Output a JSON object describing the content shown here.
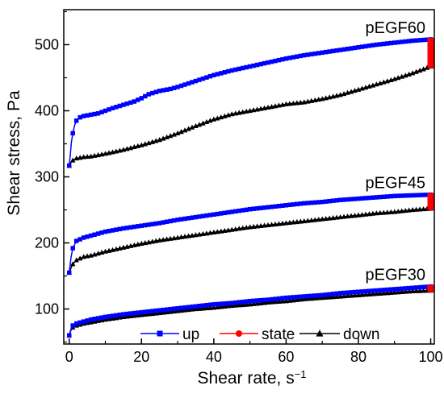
{
  "chart_data": {
    "type": "line",
    "xlabel_base": "Shear rate, s",
    "xlabel_sup": "−1",
    "ylabel": "Shear stress, Pa",
    "xlim": [
      -1.5,
      101
    ],
    "ylim": [
      47,
      553
    ],
    "x_ticks": [
      0,
      20,
      40,
      60,
      80,
      100
    ],
    "y_ticks": [
      100,
      200,
      300,
      400,
      500
    ],
    "x_minor_step": 10,
    "y_minor_step": 50,
    "grid": false,
    "legend_position": "bottom-right",
    "legend": [
      {
        "name": "up",
        "color": "#0000ff",
        "marker": "square"
      },
      {
        "name": "state",
        "color": "#ff0000",
        "marker": "circle"
      },
      {
        "name": "down",
        "color": "#000000",
        "marker": "triangle"
      }
    ],
    "annotations": [
      "pEGF60",
      "pEGF45",
      "pEGF30"
    ],
    "samples": [
      {
        "label": "pEGF60",
        "up": [
          [
            0,
            317
          ],
          [
            0.3,
            333
          ],
          [
            0.6,
            352
          ],
          [
            1,
            366
          ],
          [
            1.5,
            378
          ],
          [
            2,
            385
          ],
          [
            3,
            390
          ],
          [
            4,
            392
          ],
          [
            6,
            394
          ],
          [
            8,
            396
          ],
          [
            10,
            400
          ],
          [
            12,
            404
          ],
          [
            15,
            409
          ],
          [
            18,
            414
          ],
          [
            20,
            419
          ],
          [
            22,
            425
          ],
          [
            25,
            430
          ],
          [
            28,
            433
          ],
          [
            30,
            436
          ],
          [
            35,
            445
          ],
          [
            40,
            454
          ],
          [
            45,
            461
          ],
          [
            50,
            467
          ],
          [
            55,
            473
          ],
          [
            60,
            479
          ],
          [
            65,
            484
          ],
          [
            70,
            488
          ],
          [
            75,
            492
          ],
          [
            80,
            496
          ],
          [
            85,
            500
          ],
          [
            90,
            503
          ],
          [
            95,
            506
          ],
          [
            100,
            508
          ]
        ],
        "state": [
          [
            100,
            508
          ],
          [
            100,
            467
          ]
        ],
        "down": [
          [
            0,
            317
          ],
          [
            0.5,
            322
          ],
          [
            1,
            325
          ],
          [
            2,
            328
          ],
          [
            4,
            330
          ],
          [
            6,
            331
          ],
          [
            8,
            333
          ],
          [
            10,
            335
          ],
          [
            15,
            341
          ],
          [
            20,
            348
          ],
          [
            25,
            356
          ],
          [
            30,
            366
          ],
          [
            35,
            377
          ],
          [
            40,
            387
          ],
          [
            45,
            395
          ],
          [
            50,
            400
          ],
          [
            55,
            405
          ],
          [
            60,
            410
          ],
          [
            65,
            413
          ],
          [
            70,
            418
          ],
          [
            75,
            424
          ],
          [
            80,
            432
          ],
          [
            85,
            440
          ],
          [
            90,
            448
          ],
          [
            95,
            457
          ],
          [
            100,
            467
          ]
        ]
      },
      {
        "label": "pEGF45",
        "up": [
          [
            0,
            155
          ],
          [
            0.5,
            178
          ],
          [
            1,
            192
          ],
          [
            2,
            203
          ],
          [
            4,
            208
          ],
          [
            6,
            211
          ],
          [
            8,
            214
          ],
          [
            10,
            217
          ],
          [
            15,
            222
          ],
          [
            20,
            226
          ],
          [
            25,
            230
          ],
          [
            30,
            235
          ],
          [
            35,
            239
          ],
          [
            40,
            243
          ],
          [
            45,
            247
          ],
          [
            50,
            251
          ],
          [
            55,
            254
          ],
          [
            60,
            257
          ],
          [
            65,
            260
          ],
          [
            70,
            262
          ],
          [
            75,
            265
          ],
          [
            80,
            267
          ],
          [
            85,
            269
          ],
          [
            90,
            271
          ],
          [
            95,
            272
          ],
          [
            100,
            273
          ]
        ],
        "state": [
          [
            100,
            273
          ],
          [
            100,
            252
          ]
        ],
        "down": [
          [
            0,
            155
          ],
          [
            0.5,
            162
          ],
          [
            1,
            168
          ],
          [
            2,
            174
          ],
          [
            4,
            179
          ],
          [
            6,
            181
          ],
          [
            8,
            184
          ],
          [
            10,
            187
          ],
          [
            15,
            193
          ],
          [
            20,
            199
          ],
          [
            25,
            204
          ],
          [
            30,
            208
          ],
          [
            35,
            212
          ],
          [
            40,
            216
          ],
          [
            45,
            220
          ],
          [
            50,
            224
          ],
          [
            55,
            227
          ],
          [
            60,
            230
          ],
          [
            65,
            233
          ],
          [
            70,
            236
          ],
          [
            75,
            239
          ],
          [
            80,
            242
          ],
          [
            85,
            245
          ],
          [
            90,
            247
          ],
          [
            95,
            250
          ],
          [
            100,
            252
          ]
        ]
      },
      {
        "label": "pEGF30",
        "up": [
          [
            0,
            60
          ],
          [
            0.5,
            70
          ],
          [
            1,
            75
          ],
          [
            2,
            78
          ],
          [
            4,
            81
          ],
          [
            6,
            84
          ],
          [
            8,
            86
          ],
          [
            10,
            88
          ],
          [
            15,
            92
          ],
          [
            20,
            95
          ],
          [
            25,
            98
          ],
          [
            30,
            101
          ],
          [
            35,
            104
          ],
          [
            40,
            107
          ],
          [
            45,
            109
          ],
          [
            50,
            112
          ],
          [
            55,
            114
          ],
          [
            60,
            117
          ],
          [
            65,
            119
          ],
          [
            70,
            121
          ],
          [
            75,
            124
          ],
          [
            80,
            126
          ],
          [
            85,
            128
          ],
          [
            90,
            130
          ],
          [
            95,
            132
          ],
          [
            100,
            134
          ]
        ],
        "state": [
          [
            100,
            134
          ],
          [
            100,
            128
          ]
        ],
        "down": [
          [
            0,
            60
          ],
          [
            0.5,
            68
          ],
          [
            1,
            72
          ],
          [
            2,
            75
          ],
          [
            4,
            78
          ],
          [
            6,
            80
          ],
          [
            8,
            82
          ],
          [
            10,
            84
          ],
          [
            15,
            88
          ],
          [
            20,
            91
          ],
          [
            25,
            94
          ],
          [
            30,
            97
          ],
          [
            35,
            100
          ],
          [
            40,
            102
          ],
          [
            45,
            105
          ],
          [
            50,
            107
          ],
          [
            55,
            110
          ],
          [
            60,
            112
          ],
          [
            65,
            115
          ],
          [
            70,
            117
          ],
          [
            75,
            119
          ],
          [
            80,
            121
          ],
          [
            85,
            123
          ],
          [
            90,
            125
          ],
          [
            95,
            127
          ],
          [
            100,
            128
          ]
        ]
      }
    ],
    "colors": {
      "up": "#0000ff",
      "state": "#ff0000",
      "down": "#000000",
      "axis": "#000000"
    }
  }
}
